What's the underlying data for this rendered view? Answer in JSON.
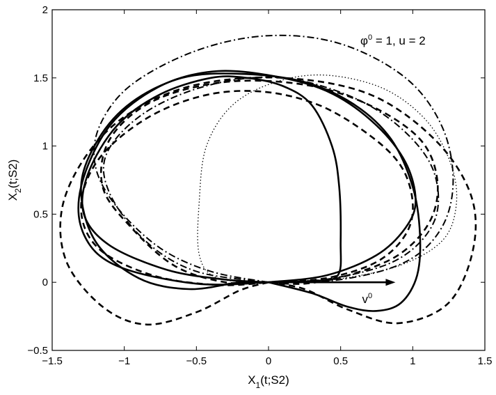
{
  "chart_data": {
    "type": "line",
    "xlabel": {
      "base": "X",
      "sub": "1",
      "rest": "(t;S2)"
    },
    "ylabel": {
      "base": "X",
      "sub": "2",
      "rest": "(t;S2)"
    },
    "xlim": [
      -1.5,
      1.5
    ],
    "ylim": [
      -0.5,
      2
    ],
    "xticks": [
      -1.5,
      -1,
      -0.5,
      0,
      0.5,
      1,
      1.5
    ],
    "xtick_labels": [
      "−1.5",
      "−1",
      "−0.5",
      "0",
      "0.5",
      "1",
      "1.5"
    ],
    "yticks": [
      -0.5,
      0,
      0.5,
      1,
      1.5,
      2
    ],
    "ytick_labels": [
      "−0.5",
      "0",
      "0.5",
      "1",
      "1.5",
      "2"
    ],
    "grid": false,
    "annotation": {
      "phi": "φ",
      "phi_sup": "0",
      "rest": " = 1,  u = 2"
    },
    "vector_label": {
      "base": "v",
      "sup": "0"
    },
    "vector": {
      "from": [
        0,
        0
      ],
      "to": [
        0.88,
        0
      ]
    },
    "series": [
      {
        "style": "solid",
        "points": [
          [
            0,
            0
          ],
          [
            0.3,
            0.01
          ],
          [
            0.48,
            0.05
          ],
          [
            0.5,
            0.3
          ],
          [
            0.49,
            0.7
          ],
          [
            0.44,
            1.0
          ],
          [
            0.3,
            1.3
          ],
          [
            0.1,
            1.44
          ],
          [
            -0.15,
            1.5
          ],
          [
            -0.4,
            1.5
          ],
          [
            -0.75,
            1.38
          ],
          [
            -1.05,
            1.15
          ],
          [
            -1.25,
            0.8
          ],
          [
            -1.28,
            0.5
          ],
          [
            -1.1,
            0.27
          ],
          [
            -0.7,
            0.09
          ],
          [
            -0.3,
            0.02
          ],
          [
            0,
            0
          ]
        ]
      },
      {
        "style": "solid",
        "points": [
          [
            0,
            0
          ],
          [
            0.4,
            0.05
          ],
          [
            0.75,
            0.2
          ],
          [
            0.95,
            0.4
          ],
          [
            1.02,
            0.6
          ],
          [
            0.95,
            0.88
          ],
          [
            0.75,
            1.15
          ],
          [
            0.45,
            1.38
          ],
          [
            0.1,
            1.5
          ],
          [
            -0.35,
            1.55
          ],
          [
            -0.75,
            1.44
          ],
          [
            -1.1,
            1.15
          ],
          [
            -1.3,
            0.7
          ],
          [
            -1.28,
            0.35
          ],
          [
            -1.05,
            0.12
          ],
          [
            -0.5,
            -0.01
          ],
          [
            0,
            0
          ]
        ]
      },
      {
        "style": "solid",
        "points": [
          [
            0,
            0
          ],
          [
            -0.2,
            0.0
          ],
          [
            -0.55,
            -0.05
          ],
          [
            -0.9,
            0.03
          ],
          [
            -1.2,
            0.3
          ],
          [
            -1.3,
            0.7
          ],
          [
            -1.18,
            1.05
          ],
          [
            -0.95,
            1.32
          ],
          [
            -0.6,
            1.5
          ],
          [
            -0.2,
            1.53
          ],
          [
            0.25,
            1.47
          ],
          [
            0.6,
            1.3
          ],
          [
            0.85,
            1.05
          ],
          [
            1.0,
            0.7
          ],
          [
            1.05,
            0.35
          ],
          [
            1.03,
            0.05
          ],
          [
            0.92,
            -0.15
          ],
          [
            0.75,
            -0.21
          ],
          [
            0.55,
            -0.18
          ],
          [
            0.3,
            -0.08
          ],
          [
            0,
            0
          ]
        ]
      },
      {
        "style": "dashed",
        "points": [
          [
            0,
            0
          ],
          [
            0.4,
            0.03
          ],
          [
            0.75,
            0.15
          ],
          [
            0.95,
            0.35
          ],
          [
            1.0,
            0.58
          ],
          [
            0.92,
            0.85
          ],
          [
            0.7,
            1.08
          ],
          [
            0.35,
            1.3
          ],
          [
            -0.05,
            1.4
          ],
          [
            -0.45,
            1.37
          ],
          [
            -0.85,
            1.2
          ],
          [
            -1.18,
            0.9
          ],
          [
            -1.3,
            0.55
          ],
          [
            -1.18,
            0.25
          ],
          [
            -0.8,
            0.05
          ],
          [
            -0.35,
            -0.02
          ],
          [
            0,
            0
          ]
        ]
      },
      {
        "style": "dashed",
        "points": [
          [
            0,
            0
          ],
          [
            -0.3,
            0.0
          ],
          [
            -0.65,
            0.12
          ],
          [
            -0.95,
            0.4
          ],
          [
            -1.15,
            0.7
          ],
          [
            -1.1,
            1.05
          ],
          [
            -0.8,
            1.33
          ],
          [
            -0.3,
            1.47
          ],
          [
            0.25,
            1.45
          ],
          [
            0.7,
            1.3
          ],
          [
            1.05,
            1.05
          ],
          [
            1.17,
            0.75
          ],
          [
            1.12,
            0.45
          ],
          [
            0.9,
            0.2
          ],
          [
            0.55,
            0.05
          ],
          [
            0.25,
            -0.01
          ],
          [
            0,
            0
          ]
        ]
      },
      {
        "style": "dashed",
        "points": [
          [
            0,
            0
          ],
          [
            -0.2,
            -0.06
          ],
          [
            -0.5,
            -0.22
          ],
          [
            -0.85,
            -0.31
          ],
          [
            -1.15,
            -0.18
          ],
          [
            -1.4,
            0.15
          ],
          [
            -1.43,
            0.55
          ],
          [
            -1.25,
            0.95
          ],
          [
            -0.95,
            1.25
          ],
          [
            -0.5,
            1.45
          ],
          [
            0.1,
            1.5
          ],
          [
            0.7,
            1.38
          ],
          [
            1.15,
            1.05
          ],
          [
            1.4,
            0.65
          ],
          [
            1.42,
            0.25
          ],
          [
            1.25,
            -0.15
          ],
          [
            0.9,
            -0.3
          ],
          [
            0.55,
            -0.2
          ],
          [
            0.25,
            -0.05
          ],
          [
            0,
            0
          ]
        ]
      },
      {
        "style": "dashdot",
        "points": [
          [
            0,
            0
          ],
          [
            -0.4,
            0.08
          ],
          [
            -0.75,
            0.25
          ],
          [
            -1.05,
            0.55
          ],
          [
            -1.2,
            0.85
          ],
          [
            -1.17,
            1.15
          ],
          [
            -0.95,
            1.45
          ],
          [
            -0.5,
            1.7
          ],
          [
            0,
            1.81
          ],
          [
            0.5,
            1.75
          ],
          [
            0.95,
            1.5
          ],
          [
            1.2,
            1.15
          ],
          [
            1.28,
            0.75
          ],
          [
            1.2,
            0.4
          ],
          [
            0.95,
            0.15
          ],
          [
            0.5,
            0.02
          ],
          [
            0,
            0
          ]
        ]
      },
      {
        "style": "dashdot",
        "points": [
          [
            0,
            0
          ],
          [
            -0.5,
            0.08
          ],
          [
            -0.85,
            0.3
          ],
          [
            -1.1,
            0.65
          ],
          [
            -1.12,
            0.95
          ],
          [
            -0.85,
            1.25
          ],
          [
            -0.4,
            1.45
          ],
          [
            0.1,
            1.5
          ],
          [
            0.6,
            1.35
          ],
          [
            0.95,
            1.1
          ],
          [
            1.15,
            0.8
          ],
          [
            1.15,
            0.45
          ],
          [
            0.9,
            0.17
          ],
          [
            0.45,
            0.03
          ],
          [
            0,
            0
          ]
        ]
      },
      {
        "style": "dotted",
        "points": [
          [
            0,
            0
          ],
          [
            -0.35,
            0.03
          ],
          [
            -0.48,
            0.2
          ],
          [
            -0.48,
            0.6
          ],
          [
            -0.43,
            1.0
          ],
          [
            -0.25,
            1.3
          ],
          [
            0.05,
            1.47
          ],
          [
            0.4,
            1.52
          ],
          [
            0.8,
            1.42
          ],
          [
            1.1,
            1.18
          ],
          [
            1.27,
            0.85
          ],
          [
            1.3,
            0.55
          ],
          [
            1.2,
            0.3
          ],
          [
            0.9,
            0.12
          ],
          [
            0.45,
            0.02
          ],
          [
            0,
            0
          ]
        ]
      }
    ]
  }
}
